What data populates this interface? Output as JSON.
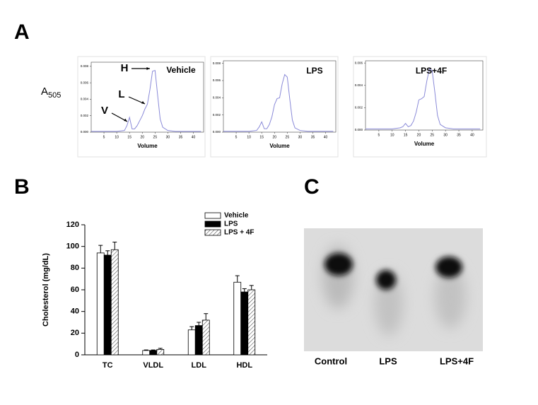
{
  "panel_labels": [
    "A",
    "B",
    "C"
  ],
  "y_axis_label": {
    "text": "A",
    "subscript": "505"
  },
  "chart_data": [
    {
      "type": "line",
      "title": "Vehicle",
      "xlabel": "Volume",
      "color": "#8a8ad8",
      "annotations": [
        "H",
        "L",
        "V"
      ],
      "x": [
        0,
        5,
        10,
        13,
        14,
        15,
        16,
        17,
        18,
        19,
        20,
        21,
        22,
        23,
        24,
        25,
        26,
        27,
        28,
        30,
        33,
        36,
        40,
        43
      ],
      "values": [
        0.0001,
        0.0001,
        0.0001,
        0.0002,
        0.0008,
        0.0018,
        0.0004,
        0.0004,
        0.0008,
        0.0014,
        0.002,
        0.0028,
        0.0034,
        0.0052,
        0.0074,
        0.0075,
        0.0045,
        0.0016,
        0.0006,
        0.0002,
        0.0001,
        0.0001,
        0.0001,
        0.0001
      ],
      "xlim": [
        0,
        44
      ],
      "xticks": [
        5,
        10,
        15,
        20,
        25,
        30,
        35,
        40
      ],
      "ylim": [
        0,
        0.0085
      ],
      "yticks": [
        {
          "value": 0,
          "label": "0.000"
        },
        {
          "value": 0.002,
          "label": "0.002"
        },
        {
          "value": 0.004,
          "label": "0.004"
        },
        {
          "value": 0.006,
          "label": "0.006"
        },
        {
          "value": 0.008,
          "label": "0.008"
        }
      ]
    },
    {
      "type": "line",
      "title": "LPS",
      "xlabel": "Volume",
      "color": "#8a8ad8",
      "x": [
        0,
        5,
        10,
        13,
        14,
        15,
        16,
        17,
        18,
        19,
        20,
        21,
        22,
        23,
        24,
        25,
        26,
        27,
        28,
        30,
        33,
        36,
        40,
        43
      ],
      "values": [
        0.0001,
        0.0001,
        0.0001,
        0.0002,
        0.0006,
        0.0012,
        0.0004,
        0.0004,
        0.0009,
        0.0018,
        0.0032,
        0.0039,
        0.004,
        0.0056,
        0.0067,
        0.0064,
        0.0038,
        0.0014,
        0.0005,
        0.0002,
        0.0001,
        0.0001,
        0.0001,
        0.0001
      ],
      "xlim": [
        0,
        44
      ],
      "xticks": [
        5,
        10,
        15,
        20,
        25,
        30,
        35,
        40
      ],
      "ylim": [
        0,
        0.0083
      ],
      "yticks": [
        {
          "value": 0,
          "label": "0.000"
        },
        {
          "value": 0.002,
          "label": "0.002"
        },
        {
          "value": 0.004,
          "label": "0.004"
        },
        {
          "value": 0.006,
          "label": "0.006"
        },
        {
          "value": 0.008,
          "label": "0.008"
        }
      ]
    },
    {
      "type": "line",
      "title": "LPS+4F",
      "xlabel": "Volume",
      "color": "#8a8ad8",
      "x": [
        0,
        5,
        10,
        13,
        14,
        15,
        16,
        17,
        18,
        19,
        20,
        21,
        22,
        23,
        24,
        25,
        26,
        27,
        28,
        30,
        33,
        36,
        40,
        43
      ],
      "values": [
        0.0001,
        0.0001,
        0.0001,
        0.0002,
        0.0003,
        0.0006,
        0.0003,
        0.0004,
        0.0008,
        0.0016,
        0.0027,
        0.0028,
        0.003,
        0.0044,
        0.0055,
        0.0053,
        0.0034,
        0.0013,
        0.0005,
        0.0002,
        0.0001,
        0.0001,
        0.0001,
        0.0001
      ],
      "xlim": [
        0,
        44
      ],
      "xticks": [
        5,
        10,
        15,
        20,
        25,
        30,
        35,
        40
      ],
      "ylim": [
        0,
        0.0062
      ],
      "yticks": [
        {
          "value": 0,
          "label": "0.000"
        },
        {
          "value": 0.002,
          "label": "0.002"
        },
        {
          "value": 0.004,
          "label": "0.004"
        },
        {
          "value": 0.006,
          "label": "0.006"
        }
      ]
    },
    {
      "type": "bar",
      "ylabel": "Cholesterol (mg/dL)",
      "categories": [
        "TC",
        "VLDL",
        "LDL",
        "HDL"
      ],
      "series": [
        {
          "name": "Vehicle",
          "color": "#ffffff",
          "hatch": false,
          "values": [
            94,
            4,
            23,
            67
          ],
          "errors": [
            7,
            0.5,
            3,
            6
          ]
        },
        {
          "name": "LPS",
          "color": "#000000",
          "hatch": false,
          "values": [
            92,
            4,
            27,
            58
          ],
          "errors": [
            4,
            0.5,
            3,
            3
          ]
        },
        {
          "name": "LPS + 4F",
          "color": "#ffffff",
          "hatch": true,
          "values": [
            97,
            5,
            32,
            60
          ],
          "errors": [
            7,
            1,
            6,
            4
          ]
        }
      ],
      "ylim": [
        0,
        120
      ],
      "yticks": [
        0,
        20,
        40,
        60,
        80,
        100,
        120
      ],
      "legend": "upper right"
    }
  ],
  "gel": {
    "lanes": [
      "Control",
      "LPS",
      "LPS+4F"
    ]
  }
}
